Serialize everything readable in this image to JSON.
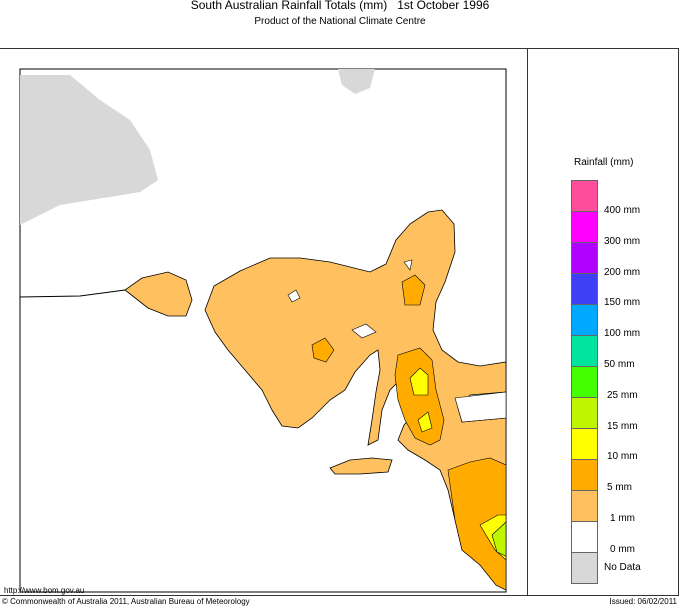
{
  "header": {
    "title": "South Australian Rainfall Totals (mm)   1st October 1996",
    "subtitle": "Product of the National Climate Centre"
  },
  "legend": {
    "title": "Rainfall (mm)",
    "swatches": [
      {
        "color": "#ff4f9a"
      },
      {
        "color": "#ff00ff"
      },
      {
        "color": "#b000ff"
      },
      {
        "color": "#3f3ff5"
      },
      {
        "color": "#00a8ff"
      },
      {
        "color": "#00e49e"
      },
      {
        "color": "#44ff00"
      },
      {
        "color": "#c0f500"
      },
      {
        "color": "#ffff00"
      },
      {
        "color": "#ffab00"
      },
      {
        "color": "#ffc060"
      },
      {
        "color": "#ffffff"
      },
      {
        "color": "#d8d8d8"
      }
    ],
    "labels": [
      "400 mm",
      "300 mm",
      "200 mm",
      "150 mm",
      "100 mm",
      "50 mm",
      "25 mm",
      "15 mm",
      "10 mm",
      "5 mm",
      "1 mm",
      "0 mm",
      "No Data"
    ]
  },
  "footer": {
    "url": "http://www.bom.gov.au",
    "copyright": "© Commonwealth of Australia 2011, Australian Bureau of Meteorology",
    "issued": "Issued: 06/02/2011"
  }
}
